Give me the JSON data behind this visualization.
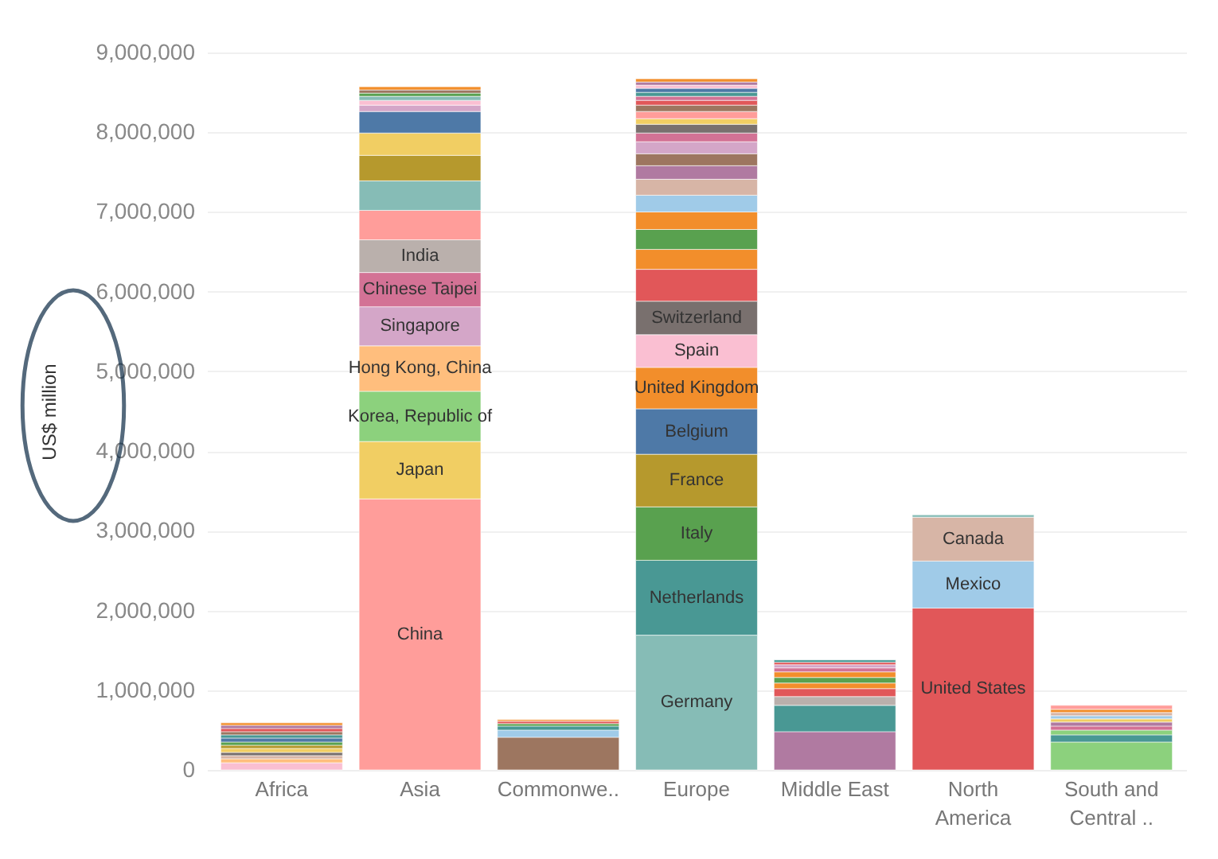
{
  "chart_data": {
    "type": "bar",
    "stacked": true,
    "ylabel": "US$ million",
    "categories": [
      "Africa",
      "Asia",
      "Commonwe..",
      "Europe",
      "Middle East",
      "North America",
      "South and Central .."
    ],
    "ylim": [
      0,
      9000000
    ],
    "yticks": [
      0,
      {
        "value": 1000000,
        "label": "1,000,000"
      },
      {
        "value": 2000000,
        "label": "2,000,000"
      },
      {
        "value": 3000000,
        "label": "3,000,000"
      },
      {
        "value": 4000000,
        "label": "4,000,000"
      },
      {
        "value": 5000000,
        "label": "5,000,000"
      },
      {
        "value": 6000000,
        "label": "6,000,000"
      },
      {
        "value": 7000000,
        "label": "7,000,000"
      },
      {
        "value": 8000000,
        "label": "8,000,000"
      },
      {
        "value": 9000000,
        "label": "9,000,000"
      }
    ],
    "grid": "y",
    "series": [
      {
        "values": [
          90000,
          3400000,
          410000,
          1690000,
          480000,
          2030000,
          350000
        ],
        "colors": [
          "#fabfd2",
          "#ff9d9a",
          "#9d7660",
          "#86bcb6",
          "#b07aa1",
          "#e15759",
          "#8cd17d"
        ],
        "value_labels": [
          null,
          "China",
          null,
          "Germany",
          null,
          "United States",
          null
        ]
      },
      {
        "values": [
          50000,
          720000,
          90000,
          940000,
          330000,
          590000,
          90000
        ],
        "colors": [
          "#ffbe7d",
          "#f1ce63",
          "#a0cbe8",
          "#499894",
          "#499894",
          "#a0cbe8",
          "#499894"
        ],
        "value_labels": [
          null,
          "Japan",
          null,
          "Netherlands",
          null,
          "Mexico",
          null
        ]
      },
      {
        "values": [
          40000,
          630000,
          50000,
          670000,
          110000,
          550000,
          60000
        ],
        "colors": [
          "#d7b5a6",
          "#8cd17d",
          "#499894",
          "#59a14f",
          "#bab0ac",
          "#d7b5a6",
          "#8cd17d"
        ],
        "value_labels": [
          null,
          "Korea, Republic of",
          null,
          "Italy",
          null,
          "Canada",
          null
        ]
      },
      {
        "values": [
          40000,
          570000,
          30000,
          660000,
          100000,
          30000,
          50000
        ],
        "colors": [
          "#79706e",
          "#ffbe7d",
          "#59a14f",
          "#b6992d",
          "#e15759",
          "#86bcb6",
          "#d37295"
        ],
        "value_labels": [
          null,
          "Hong Kong, China",
          null,
          "France",
          null,
          null,
          null
        ]
      },
      {
        "values": [
          50000,
          490000,
          30000,
          570000,
          70000,
          null,
          50000
        ],
        "colors": [
          "#f1ce63",
          "#d4a6c8",
          "#e15759",
          "#4e79a7",
          "#f28e2b",
          null,
          "#b07aa1"
        ],
        "value_labels": [
          null,
          "Singapore",
          null,
          "Belgium",
          null,
          null,
          null
        ]
      },
      {
        "values": [
          40000,
          430000,
          20000,
          520000,
          70000,
          null,
          40000
        ],
        "colors": [
          "#b6992d",
          "#d37295",
          "#f28e2b",
          "#f28e2b",
          "#59a14f",
          null,
          "#f1ce63"
        ],
        "value_labels": [
          null,
          "Chinese Taipei",
          null,
          "United Kingdom",
          null,
          null,
          null
        ]
      },
      {
        "values": [
          40000,
          410000,
          null,
          410000,
          70000,
          null,
          40000
        ],
        "colors": [
          "#59a14f",
          "#bab0ac",
          null,
          "#fabfd2",
          "#f28e2b",
          null,
          "#a0cbe8"
        ],
        "value_labels": [
          null,
          "India",
          null,
          "Spain",
          null,
          null,
          null
        ]
      },
      {
        "values": [
          50000,
          370000,
          null,
          420000,
          50000,
          null,
          40000
        ],
        "colors": [
          "#4e79a7",
          "#ff9d9a",
          null,
          "#79706e",
          "#d37295",
          null,
          "#d7b5a6"
        ],
        "value_labels": [
          null,
          null,
          null,
          "Switzerland",
          null,
          null,
          null
        ]
      },
      {
        "values": [
          40000,
          370000,
          null,
          400000,
          40000,
          null,
          40000
        ],
        "colors": [
          "#499894",
          "#86bcb6",
          null,
          "#e15759",
          "#d4a6c8",
          null,
          "#f28e2b"
        ]
      },
      {
        "values": [
          40000,
          320000,
          null,
          250000,
          30000,
          null,
          50000
        ],
        "colors": [
          "#9d7660",
          "#b6992d",
          null,
          "#f28e2b",
          "#e15759",
          null,
          "#ff9d9a"
        ]
      },
      {
        "values": [
          40000,
          280000,
          null,
          250000,
          30000,
          null,
          null
        ],
        "colors": [
          "#e15759",
          "#f1ce63",
          null,
          "#59a14f",
          "#499894",
          null,
          null
        ]
      },
      {
        "values": [
          40000,
          270000,
          null,
          220000,
          null,
          null,
          null
        ],
        "colors": [
          "#b07aa1",
          "#4e79a7",
          null,
          "#f28e2b",
          null,
          null,
          null
        ]
      },
      {
        "values": [
          30000,
          80000,
          null,
          210000,
          null,
          null,
          null
        ],
        "colors": [
          "#f28e2b",
          "#d4a6c8",
          null,
          "#a0cbe8",
          null,
          null,
          null
        ]
      },
      {
        "values": [
          null,
          60000,
          null,
          200000,
          null,
          null,
          null
        ],
        "colors": [
          null,
          "#fabfd2",
          null,
          "#d7b5a6",
          null,
          null,
          null
        ]
      },
      {
        "values": [
          null,
          50000,
          null,
          170000,
          null,
          null,
          null
        ],
        "colors": [
          null,
          "#86bcb6",
          null,
          "#b07aa1",
          null,
          null,
          null
        ]
      },
      {
        "values": [
          null,
          40000,
          null,
          150000,
          null,
          null,
          null
        ],
        "colors": [
          null,
          "#59a14f",
          null,
          "#9d7660",
          null,
          null,
          null
        ]
      },
      {
        "values": [
          null,
          40000,
          null,
          150000,
          null,
          null,
          null
        ],
        "colors": [
          null,
          "#9d7660",
          null,
          "#d4a6c8",
          null,
          null,
          null
        ]
      },
      {
        "values": [
          null,
          40000,
          null,
          110000,
          null,
          null,
          null
        ],
        "colors": [
          null,
          "#f28e2b",
          null,
          "#d37295",
          null,
          null,
          null
        ]
      },
      {
        "values": [
          null,
          null,
          null,
          110000,
          null,
          null,
          null
        ],
        "colors": [
          null,
          null,
          null,
          "#79706e",
          null,
          null,
          null
        ]
      },
      {
        "values": [
          null,
          null,
          null,
          70000,
          null,
          null,
          null
        ],
        "colors": [
          null,
          null,
          null,
          "#f1ce63",
          null,
          null,
          null
        ]
      },
      {
        "values": [
          null,
          null,
          null,
          90000,
          null,
          null,
          null
        ],
        "colors": [
          null,
          null,
          null,
          "#ff9d9a",
          null,
          null,
          null
        ]
      },
      {
        "values": [
          null,
          null,
          null,
          80000,
          null,
          null,
          null
        ],
        "colors": [
          null,
          null,
          null,
          "#9d7660",
          null,
          null,
          null
        ]
      },
      {
        "values": [
          null,
          null,
          null,
          60000,
          null,
          null,
          null
        ],
        "colors": [
          null,
          null,
          null,
          "#e15759",
          null,
          null,
          null
        ]
      },
      {
        "values": [
          null,
          null,
          null,
          50000,
          null,
          null,
          null
        ],
        "colors": [
          null,
          null,
          null,
          "#d37295",
          null,
          null,
          null
        ]
      },
      {
        "values": [
          null,
          null,
          null,
          50000,
          null,
          null,
          null
        ],
        "colors": [
          null,
          null,
          null,
          "#499894",
          null,
          null,
          null
        ]
      },
      {
        "values": [
          null,
          null,
          null,
          50000,
          null,
          null,
          null
        ],
        "colors": [
          null,
          null,
          null,
          "#4e79a7",
          null,
          null,
          null
        ]
      },
      {
        "values": [
          null,
          null,
          null,
          40000,
          null,
          null,
          null
        ],
        "colors": [
          null,
          null,
          null,
          "#fabfd2",
          null,
          null,
          null
        ]
      },
      {
        "values": [
          null,
          null,
          null,
          40000,
          null,
          null,
          null
        ],
        "colors": [
          null,
          null,
          null,
          "#b07aa1",
          null,
          null,
          null
        ]
      },
      {
        "values": [
          null,
          null,
          null,
          40000,
          null,
          null,
          null
        ],
        "colors": [
          null,
          null,
          null,
          "#f28e2b",
          null,
          null,
          null
        ]
      }
    ]
  }
}
